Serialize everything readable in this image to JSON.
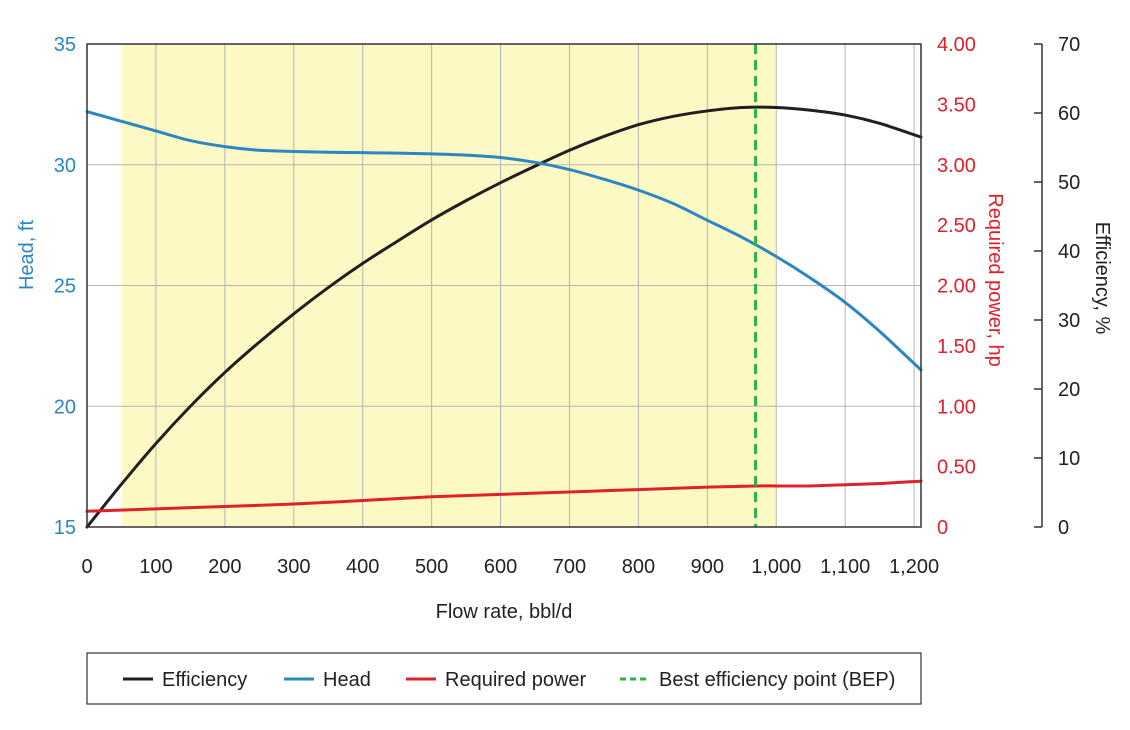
{
  "colors": {
    "efficiency": "#231f20",
    "head": "#2a87c2",
    "power": "#e0202b",
    "bep": "#2db34a",
    "range_fill": "#fdf9c4",
    "grid": "#b5b5b5",
    "frame": "#333333"
  },
  "chart_data": {
    "type": "line",
    "xlabel": "Flow rate, bbl/d",
    "x_ticks": [
      "0",
      "100",
      "200",
      "300",
      "400",
      "500",
      "600",
      "700",
      "800",
      "900",
      "1,000",
      "1,100",
      "1,200"
    ],
    "xlim": [
      0,
      1210
    ],
    "y_head": {
      "label": "Head, ft",
      "range": [
        15,
        35
      ],
      "ticks": [
        "15",
        "20",
        "25",
        "30",
        "35"
      ]
    },
    "y_power": {
      "label": "Required power, hp",
      "range": [
        0,
        4
      ],
      "ticks": [
        "0",
        "0.50",
        "1.00",
        "1.50",
        "2.00",
        "2.50",
        "3.00",
        "3.50",
        "4.00"
      ]
    },
    "y_eff": {
      "label": "Efficiency, %",
      "range": [
        0,
        70
      ],
      "ticks": [
        "0",
        "10",
        "20",
        "30",
        "40",
        "50",
        "60",
        "70"
      ]
    },
    "operating_range": [
      50,
      1000
    ],
    "bep_flow": 970,
    "series": [
      {
        "name": "Efficiency",
        "axis": "eff",
        "x": [
          0,
          50,
          100,
          150,
          200,
          250,
          300,
          350,
          400,
          450,
          500,
          550,
          600,
          650,
          700,
          750,
          800,
          850,
          900,
          950,
          1000,
          1050,
          1100,
          1150,
          1210
        ],
        "y": [
          0,
          6.2,
          12.1,
          17.5,
          22.4,
          26.8,
          30.9,
          34.7,
          38.2,
          41.4,
          44.5,
          47.3,
          49.9,
          52.3,
          54.6,
          56.6,
          58.3,
          59.5,
          60.3,
          60.8,
          60.8,
          60.4,
          59.7,
          58.5,
          56.5
        ]
      },
      {
        "name": "Head",
        "axis": "head",
        "x": [
          0,
          50,
          100,
          150,
          200,
          250,
          300,
          350,
          400,
          450,
          500,
          550,
          600,
          650,
          700,
          750,
          800,
          850,
          900,
          950,
          1000,
          1050,
          1100,
          1150,
          1210
        ],
        "y": [
          32.2,
          31.8,
          31.4,
          31.0,
          30.75,
          30.6,
          30.55,
          30.52,
          30.5,
          30.48,
          30.45,
          30.4,
          30.3,
          30.1,
          29.8,
          29.4,
          28.95,
          28.4,
          27.7,
          27.0,
          26.2,
          25.3,
          24.3,
          23.1,
          21.5
        ]
      },
      {
        "name": "Required power",
        "axis": "power",
        "x": [
          0,
          100,
          200,
          300,
          400,
          500,
          600,
          700,
          800,
          900,
          970,
          1000,
          1050,
          1100,
          1150,
          1210
        ],
        "y": [
          0.13,
          0.15,
          0.17,
          0.19,
          0.22,
          0.25,
          0.27,
          0.29,
          0.31,
          0.33,
          0.34,
          0.34,
          0.34,
          0.35,
          0.36,
          0.38
        ]
      }
    ],
    "legend": {
      "placement": "bottom",
      "entries": [
        {
          "label": "Efficiency",
          "style": "solid",
          "color_key": "efficiency"
        },
        {
          "label": "Head",
          "style": "solid",
          "color_key": "head"
        },
        {
          "label": "Required power",
          "style": "solid",
          "color_key": "power"
        },
        {
          "label": "Best efficiency point (BEP)",
          "style": "dashed",
          "color_key": "bep"
        }
      ]
    }
  }
}
